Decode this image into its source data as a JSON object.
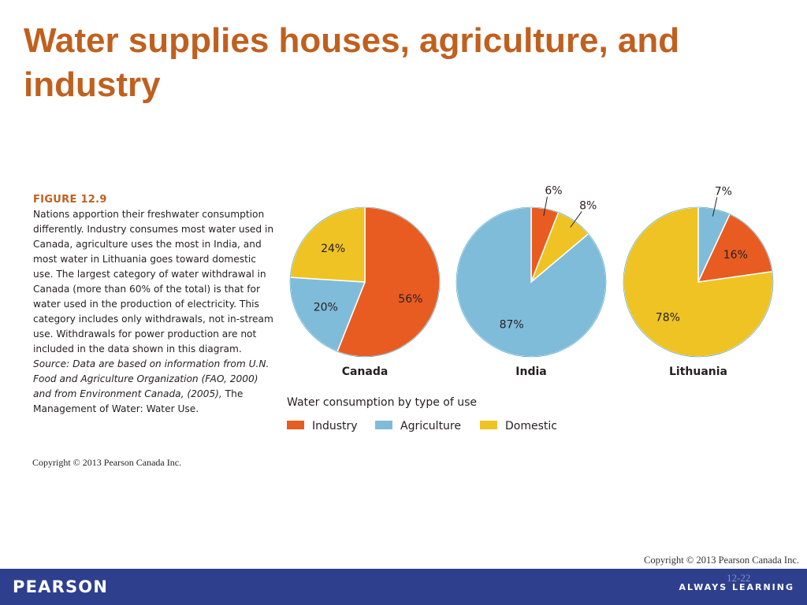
{
  "slide": {
    "title": "Water supplies houses, agriculture, and industry",
    "copyright_right": "Copyright © 2013 Pearson Canada Inc.",
    "slide_number": "12-22"
  },
  "figure": {
    "label": "FIGURE 12.9",
    "caption": "Nations apportion their freshwater consumption differently. Industry consumes most water used in Canada, agriculture uses the most in India, and most water in Lithuania goes toward domestic use. The largest category of water withdrawal in Canada (more than 60% of the total) is that for water used in the production of electricity. This category includes only withdrawals, not in-stream use. Withdrawals for power production are not included in the data shown in this diagram.",
    "source_italic": "Source: Data are based on information from U.N. Food and Agriculture Organization (FAO, 2000) and from Environment Canada, (2005),",
    "source_tail": " The Management of Water: Water Use.",
    "copyright": "Copyright © 2013 Pearson Canada Inc."
  },
  "footer": {
    "brand": "PEARSON",
    "tagline": "ALWAYS LEARNING",
    "color": "#2e3f8e"
  },
  "chart_data": {
    "type": "pie",
    "title": "Water consumption by type of use",
    "categories": [
      "Industry",
      "Agriculture",
      "Domestic"
    ],
    "colors": {
      "Industry": "#e85c22",
      "Agriculture": "#7fbcd9",
      "Domestic": "#efc324"
    },
    "charts": [
      {
        "name": "Canada",
        "values": [
          56,
          20,
          24
        ],
        "labels": [
          "56%",
          "20%",
          "24%"
        ]
      },
      {
        "name": "India",
        "values": [
          6,
          87,
          8
        ],
        "labels": [
          "6%",
          "87%",
          "8%"
        ]
      },
      {
        "name": "Lithuania",
        "values": [
          16,
          7,
          78
        ],
        "labels": [
          "16%",
          "7%",
          "78%"
        ]
      }
    ],
    "legend_position": "bottom-left"
  }
}
